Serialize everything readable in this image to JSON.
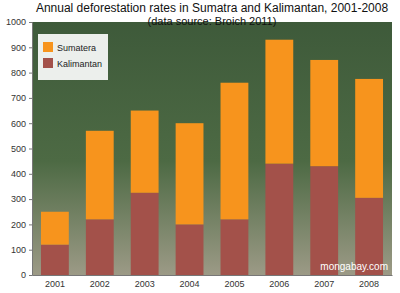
{
  "chart_data": {
    "type": "bar",
    "stacked": true,
    "title": "Annual deforestation rates in Sumatra and Kalimantan, 2001-2008",
    "subtitle": "(data source: Broich 2011)",
    "annotations": [
      "mongabay.com"
    ],
    "categories": [
      "2001",
      "2002",
      "2003",
      "2004",
      "2005",
      "2006",
      "2007",
      "2008"
    ],
    "series": [
      {
        "name": "Sumatera",
        "color": "#f7941d",
        "values": [
          130,
          350,
          325,
          400,
          540,
          490,
          420,
          470
        ]
      },
      {
        "name": "Kalimantan",
        "color": "#a3514a",
        "values": [
          120,
          220,
          325,
          200,
          220,
          440,
          430,
          305
        ]
      }
    ],
    "ylim": [
      0,
      1000
    ],
    "yticks": [
      0,
      100,
      200,
      300,
      400,
      500,
      600,
      700,
      800,
      900,
      1000
    ],
    "grid": false,
    "legend": "top-left"
  }
}
